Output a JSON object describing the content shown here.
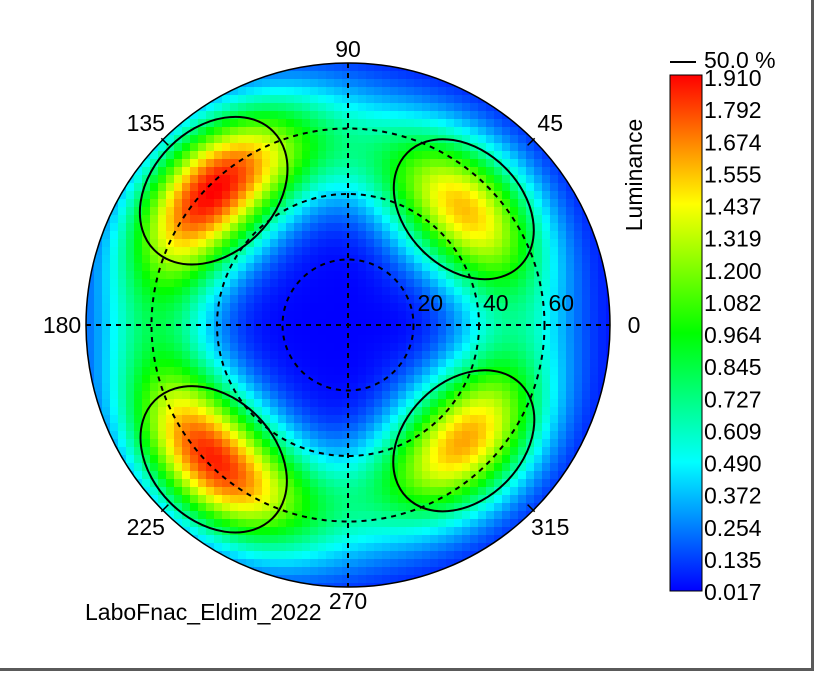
{
  "chart_data": {
    "type": "heatmap",
    "projection": "polar",
    "title": "",
    "footer_label": "LaboFnac_Eldim_2022",
    "angular_tick_labels": [
      "0",
      "45",
      "90",
      "135",
      "180",
      "225",
      "270",
      "315"
    ],
    "radial_tick_labels": [
      "20",
      "40",
      "60"
    ],
    "radial_range": [
      0,
      80
    ],
    "grid": true,
    "colorbar": {
      "title": "Luminance",
      "header": "50.0 %",
      "min": 0.017,
      "max": 1.91,
      "max_label": "1.910",
      "tick_labels": [
        "1.792",
        "1.674",
        "1.555",
        "1.437",
        "1.319",
        "1.200",
        "1.082",
        "0.964",
        "0.845",
        "0.727",
        "0.609",
        "0.490",
        "0.372",
        "0.254",
        "0.135",
        "0.017"
      ],
      "colors": [
        "#0000ff",
        "#0080ff",
        "#00ffff",
        "#00ff80",
        "#00ff00",
        "#80ff00",
        "#ffff00",
        "#ff8000",
        "#ff0000"
      ]
    },
    "peaks": [
      {
        "azimuth": 45,
        "polar_angle": 50,
        "value": 1.55
      },
      {
        "azimuth": 135,
        "polar_angle": 58,
        "value": 1.91
      },
      {
        "azimuth": 225,
        "polar_angle": 58,
        "value": 1.85
      },
      {
        "azimuth": 315,
        "polar_angle": 50,
        "value": 1.6
      }
    ],
    "contour_level": 0.955,
    "contour_label": "50.0 %",
    "contour_color": "#000000"
  }
}
